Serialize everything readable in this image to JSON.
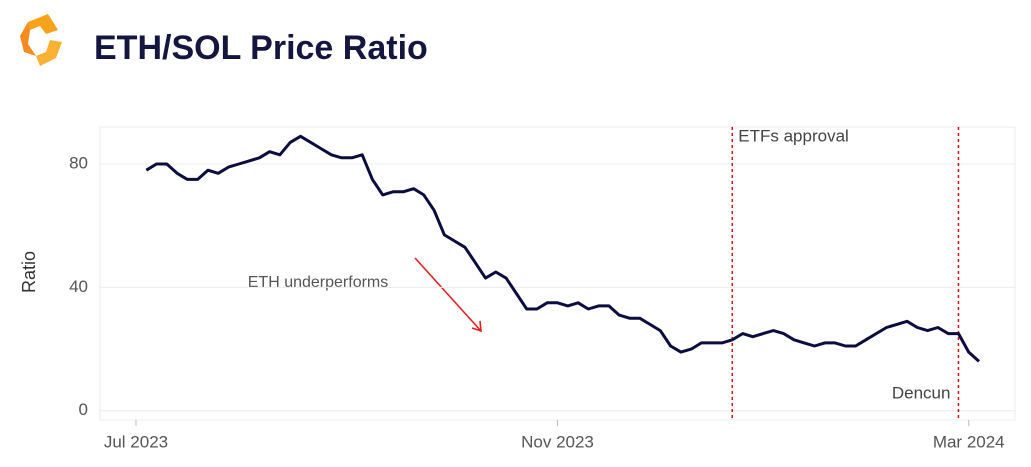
{
  "chart_data": {
    "type": "line",
    "title": "ETH/SOL Price Ratio",
    "y_label": "Ratio",
    "annotation": "ETH underperforms",
    "categories": [
      null,
      null,
      null,
      "Jul 2023",
      null,
      null,
      null,
      null,
      null,
      null,
      null,
      null,
      null,
      null,
      null,
      null,
      null,
      null,
      null,
      null,
      null,
      null,
      null,
      null,
      null,
      null,
      null,
      null,
      null,
      null,
      null,
      null,
      null,
      null,
      null,
      null,
      null,
      null,
      null,
      null,
      null,
      null,
      null,
      null,
      "Nov 2023",
      null,
      null,
      null,
      null,
      null,
      null,
      null,
      null,
      null,
      null,
      null,
      null,
      null,
      null,
      null,
      null,
      null,
      null,
      null,
      null,
      null,
      null,
      null,
      null,
      null,
      null,
      null,
      null,
      null,
      null,
      null,
      null,
      null,
      null,
      null,
      null,
      null,
      null,
      null,
      "Mar 2024",
      null,
      null,
      null,
      null
    ],
    "values": [
      null,
      null,
      null,
      null,
      78,
      80,
      80,
      77,
      75,
      75,
      78,
      77,
      79,
      80,
      81,
      82,
      84,
      83,
      87,
      89,
      87,
      85,
      83,
      82,
      82,
      83,
      75,
      70,
      71,
      71,
      72,
      70,
      65,
      57,
      55,
      53,
      48,
      43,
      45,
      43,
      38,
      33,
      33,
      35,
      35,
      34,
      35,
      33,
      34,
      34,
      31,
      30,
      30,
      28,
      26,
      21,
      19,
      20,
      22,
      22,
      22,
      23,
      25,
      24,
      25,
      26,
      25,
      23,
      22,
      21,
      22,
      22,
      21,
      21,
      23,
      25,
      27,
      28,
      29,
      27,
      26,
      27,
      25,
      25,
      19,
      16,
      null,
      null,
      null
    ],
    "color": "#0b0c3f",
    "vlines": [
      {
        "label": "ETFs approval",
        "category_index": 61
      },
      {
        "label": "Dencun",
        "category_index": 83
      }
    ],
    "ylim": [
      -3,
      92
    ],
    "yticks": [
      0,
      40,
      80
    ],
    "grid": true
  }
}
